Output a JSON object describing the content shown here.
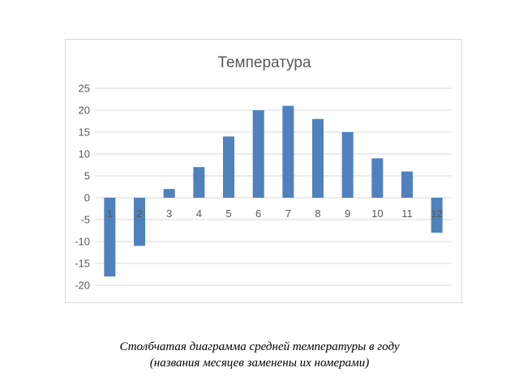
{
  "chart_data": {
    "type": "bar",
    "title": "Температура",
    "xlabel": "",
    "ylabel": "",
    "categories": [
      "1",
      "2",
      "3",
      "4",
      "5",
      "6",
      "7",
      "8",
      "9",
      "10",
      "11",
      "12"
    ],
    "values": [
      -18,
      -11,
      2,
      7,
      14,
      20,
      21,
      18,
      15,
      9,
      6,
      -8
    ],
    "ylim": [
      -20,
      25
    ],
    "yticks": [
      25,
      20,
      15,
      10,
      5,
      0,
      -5,
      -10,
      -15,
      -20
    ],
    "grid": true,
    "legend": "none",
    "bar_color": "#4f81bd"
  },
  "caption": {
    "line1": "Столбчатая диаграмма средней температуры в году",
    "line2": "(названия месяцев заменены их номерами)"
  }
}
